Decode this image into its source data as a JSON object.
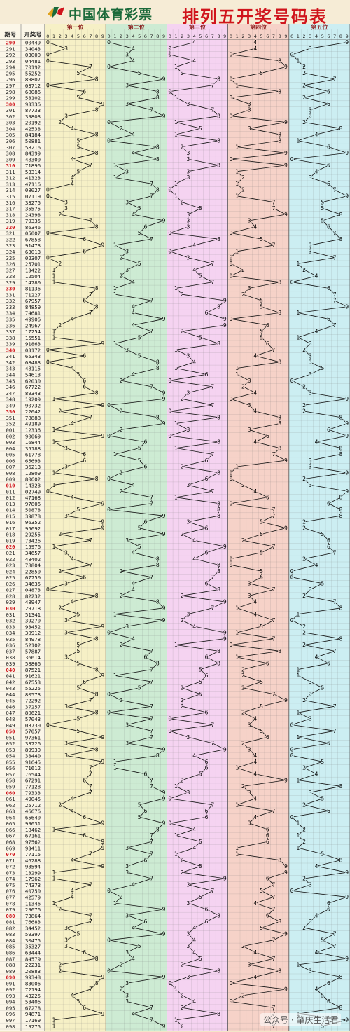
{
  "header": {
    "brand": "中国体育彩票",
    "title": "排列五开奖号码表"
  },
  "table": {
    "col_issue": "期号",
    "col_number": "开奖号",
    "positions": [
      "第一位",
      "第二位",
      "第三位",
      "第四位",
      "第五位"
    ],
    "digits": [
      "0",
      "1",
      "2",
      "3",
      "4",
      "5",
      "6",
      "7",
      "8",
      "9"
    ]
  },
  "colors": {
    "pos_bg": [
      "#f6f0c6",
      "#cdebd3",
      "#f5d3f1",
      "#f6d2c8",
      "#cceef2"
    ],
    "line": "#111111",
    "issue_text": "#222222",
    "issue_highlight": "#d0141c"
  },
  "chart_data": {
    "type": "line",
    "issues": [
      "290",
      "291",
      "292",
      "293",
      "294",
      "295",
      "296",
      "297",
      "298",
      "299",
      "300",
      "301",
      "302",
      "303",
      "304",
      "305",
      "306",
      "307",
      "308",
      "309",
      "310",
      "311",
      "312",
      "313",
      "314",
      "315",
      "316",
      "317",
      "318",
      "319",
      "320",
      "321",
      "322",
      "323",
      "324",
      "325",
      "326",
      "327",
      "328",
      "329",
      "330",
      "331",
      "332",
      "333",
      "334",
      "335",
      "336",
      "337",
      "338",
      "339",
      "340",
      "341",
      "342",
      "343",
      "344",
      "345",
      "346",
      "347",
      "348",
      "349",
      "350",
      "351",
      "352",
      "001",
      "002",
      "003",
      "004",
      "005",
      "006",
      "007",
      "008",
      "009",
      "010",
      "011",
      "012",
      "013",
      "014",
      "015",
      "016",
      "017",
      "018",
      "019",
      "020",
      "021",
      "022",
      "023",
      "024",
      "025",
      "026",
      "027",
      "028",
      "029",
      "030",
      "031",
      "032",
      "033",
      "034",
      "035",
      "036",
      "037",
      "038",
      "039",
      "040",
      "041",
      "042",
      "043",
      "044",
      "045",
      "046",
      "047",
      "048",
      "049",
      "050",
      "051",
      "052",
      "053",
      "054",
      "055",
      "056",
      "057",
      "058",
      "059",
      "060",
      "061",
      "062",
      "063",
      "064",
      "065",
      "066",
      "067",
      "068",
      "069",
      "070",
      "071",
      "072",
      "073",
      "074",
      "075",
      "076",
      "077",
      "078",
      "079",
      "080",
      "081",
      "082",
      "083",
      "084",
      "085",
      "086",
      "087",
      "088",
      "089",
      "090",
      "091",
      "092",
      "093",
      "094",
      "095",
      "096",
      "097",
      "098"
    ],
    "numbers": [
      "00449",
      "34043",
      "03000",
      "04481",
      "70192",
      "55252",
      "89807",
      "03712",
      "68086",
      "58102",
      "93336",
      "87733",
      "39803",
      "20192",
      "42538",
      "84184",
      "50881",
      "58216",
      "84399",
      "48300",
      "71896",
      "53314",
      "41323",
      "47116",
      "08027",
      "07119",
      "33275",
      "35575",
      "24398",
      "79335",
      "86346",
      "05007",
      "67858",
      "91473",
      "63013",
      "02307",
      "25701",
      "13422",
      "12504",
      "14780",
      "81136",
      "71227",
      "67957",
      "84859",
      "74681",
      "49906",
      "24967",
      "17254",
      "15551",
      "91863",
      "03172",
      "65343",
      "08483",
      "48115",
      "54613",
      "62030",
      "67722",
      "89343",
      "19209",
      "90732",
      "22042",
      "78888",
      "49189",
      "12336",
      "90069",
      "16844",
      "35188",
      "61778",
      "65693",
      "36213",
      "12809",
      "80602",
      "14323",
      "02749",
      "47168",
      "97806",
      "50878",
      "39878",
      "96352",
      "95692",
      "29255",
      "73426",
      "15976",
      "34657",
      "48402",
      "78804",
      "22850",
      "67750",
      "34635",
      "04873",
      "82232",
      "48947",
      "29718",
      "51341",
      "39270",
      "93452",
      "30912",
      "84978",
      "52102",
      "57887",
      "36614",
      "58866",
      "87521",
      "91621",
      "67553",
      "55225",
      "80573",
      "72292",
      "37257",
      "80621",
      "57043",
      "03730",
      "57057",
      "97361",
      "33726",
      "89930",
      "38440",
      "91645",
      "71612",
      "76544",
      "67291",
      "77128",
      "79333",
      "49045",
      "25712",
      "46676",
      "65640",
      "99031",
      "18462",
      "67161",
      "97562",
      "93411",
      "77115",
      "46288",
      "93594",
      "13299",
      "17962",
      "74373",
      "40750",
      "42579",
      "11346",
      "29676",
      "73864",
      "76683",
      "34452",
      "59397",
      "30475",
      "35327",
      "63444",
      "84579",
      "22231",
      "20883",
      "99348",
      "83006",
      "72194",
      "43225",
      "53406",
      "67278",
      "94871",
      "17169",
      "19275"
    ]
  },
  "watermark": "公众号 · 肇庆生活君"
}
